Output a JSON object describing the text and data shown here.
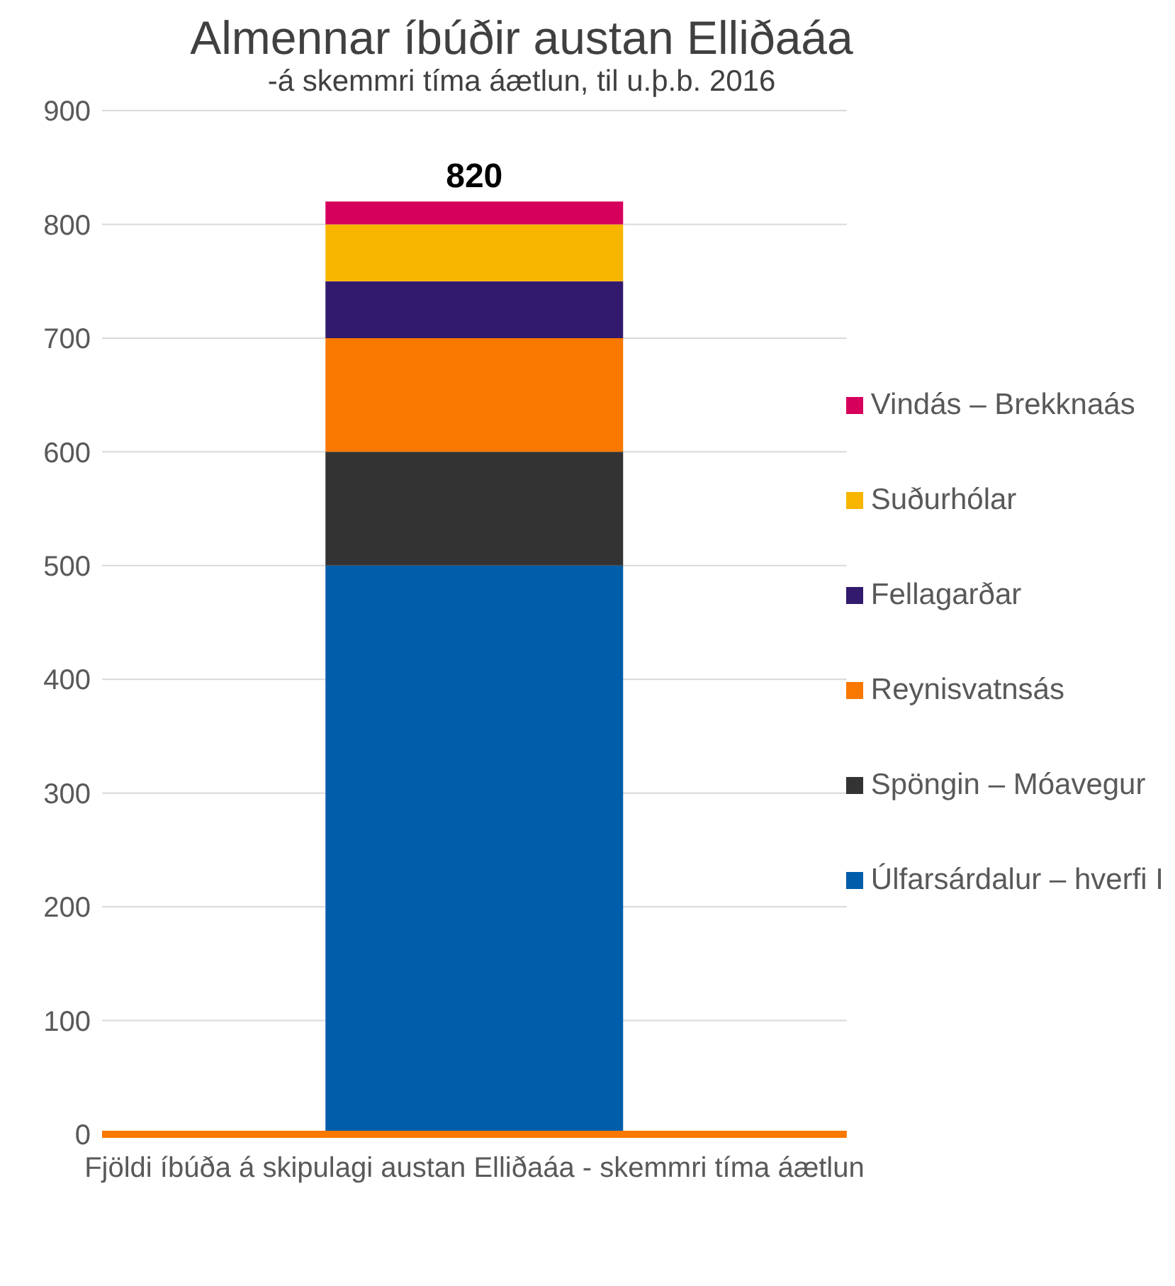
{
  "chart_data": {
    "type": "bar",
    "title": "Almennar íbúðir austan Elliðaáa",
    "subtitle": "-á skemmri tíma áætlun, til u.þ.b. 2016",
    "categories": [
      "Fjöldi íbúða á skipulagi austan Elliðaáa - skemmri tíma áætlun"
    ],
    "stacked": true,
    "series": [
      {
        "name": "Úlfarsárdalur – hverfi I",
        "color": "#005daa",
        "values": [
          500
        ]
      },
      {
        "name": "Spöngin – Móavegur",
        "color": "#333333",
        "values": [
          100
        ]
      },
      {
        "name": "Reynisvatnsás",
        "color": "#f97800",
        "values": [
          100
        ]
      },
      {
        "name": "Fellagarðar",
        "color": "#321a6e",
        "values": [
          50
        ]
      },
      {
        "name": "Suðurhólar",
        "color": "#f8b500",
        "values": [
          50
        ]
      },
      {
        "name": "Vindás – Brekknaás",
        "color": "#d6005c",
        "values": [
          20
        ]
      }
    ],
    "totals": [
      "820"
    ],
    "ylim": [
      0,
      900
    ],
    "yticks": [
      0,
      100,
      200,
      300,
      400,
      500,
      600,
      700,
      800,
      900
    ],
    "grid": "y",
    "legend": "right"
  }
}
